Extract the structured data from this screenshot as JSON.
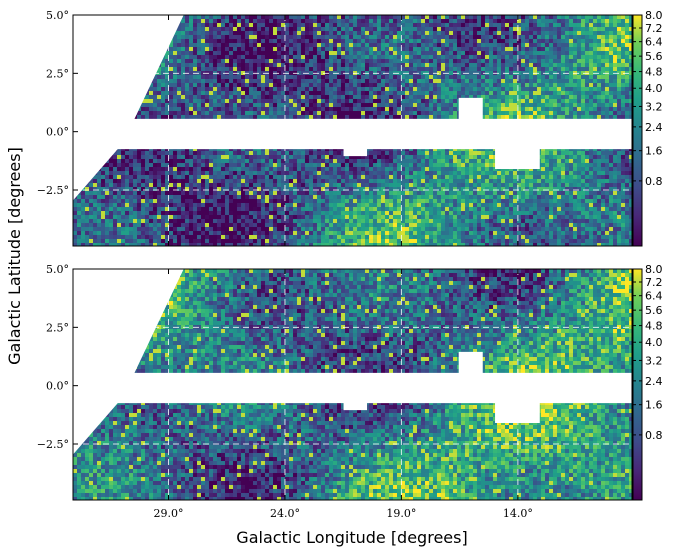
{
  "chart_data": {
    "type": "heatmap",
    "xlabel": "Galactic Longitude [degrees]",
    "ylabel": "Galactic Latitude [degrees]",
    "colormap": "viridis",
    "colors": {
      "low": "#440154",
      "mid": "#21918c",
      "high": "#fde725",
      "grid": "#ffffff",
      "frame": "#000000"
    },
    "grid": true,
    "x_axis_reversed": true,
    "xlim": [
      33.1,
      9.1
    ],
    "ylim": [
      -4.9,
      5.0
    ],
    "masked_band": {
      "lat_range": [
        -0.75,
        0.55
      ]
    },
    "panels": [
      {
        "x_ticks": [
          {
            "value": 29,
            "label": ""
          },
          {
            "value": 24,
            "label": ""
          },
          {
            "value": 19,
            "label": ""
          },
          {
            "value": 14,
            "label": ""
          }
        ],
        "y_ticks": [
          {
            "value": 5.0,
            "label": "5.0°"
          },
          {
            "value": 2.5,
            "label": "2.5°"
          },
          {
            "value": 0.0,
            "label": "0.0°"
          },
          {
            "value": -2.5,
            "label": "−2.5°"
          }
        ],
        "colorbar": {
          "vmin": 0.0,
          "vmax": 8.0,
          "ticks": [
            8.0,
            7.2,
            6.4,
            5.6,
            4.8,
            4.0,
            3.2,
            2.4,
            1.6,
            0.8
          ],
          "labels": [
            "8.0",
            "7.2",
            "6.4",
            "5.6",
            "4.8",
            "4.0",
            "3.2",
            "2.4",
            "1.6",
            "0.8"
          ]
        },
        "seed": 7,
        "brightness": 0.0
      },
      {
        "x_ticks": [
          {
            "value": 29,
            "label": "29.0°"
          },
          {
            "value": 24,
            "label": "24.0°"
          },
          {
            "value": 19,
            "label": "19.0°"
          },
          {
            "value": 14,
            "label": "14.0°"
          }
        ],
        "y_ticks": [
          {
            "value": 5.0,
            "label": "5.0°"
          },
          {
            "value": 2.5,
            "label": "2.5°"
          },
          {
            "value": 0.0,
            "label": "0.0°"
          },
          {
            "value": -2.5,
            "label": "−2.5°"
          }
        ],
        "colorbar": {
          "vmin": 0.0,
          "vmax": 8.0,
          "ticks": [
            8.0,
            7.2,
            6.4,
            5.6,
            4.8,
            4.0,
            3.2,
            2.4,
            1.6,
            0.8
          ],
          "labels": [
            "8.0",
            "7.2",
            "6.4",
            "5.6",
            "4.8",
            "4.0",
            "3.2",
            "2.4",
            "1.6",
            "0.8"
          ]
        },
        "seed": 23,
        "brightness": 0.12
      }
    ]
  }
}
